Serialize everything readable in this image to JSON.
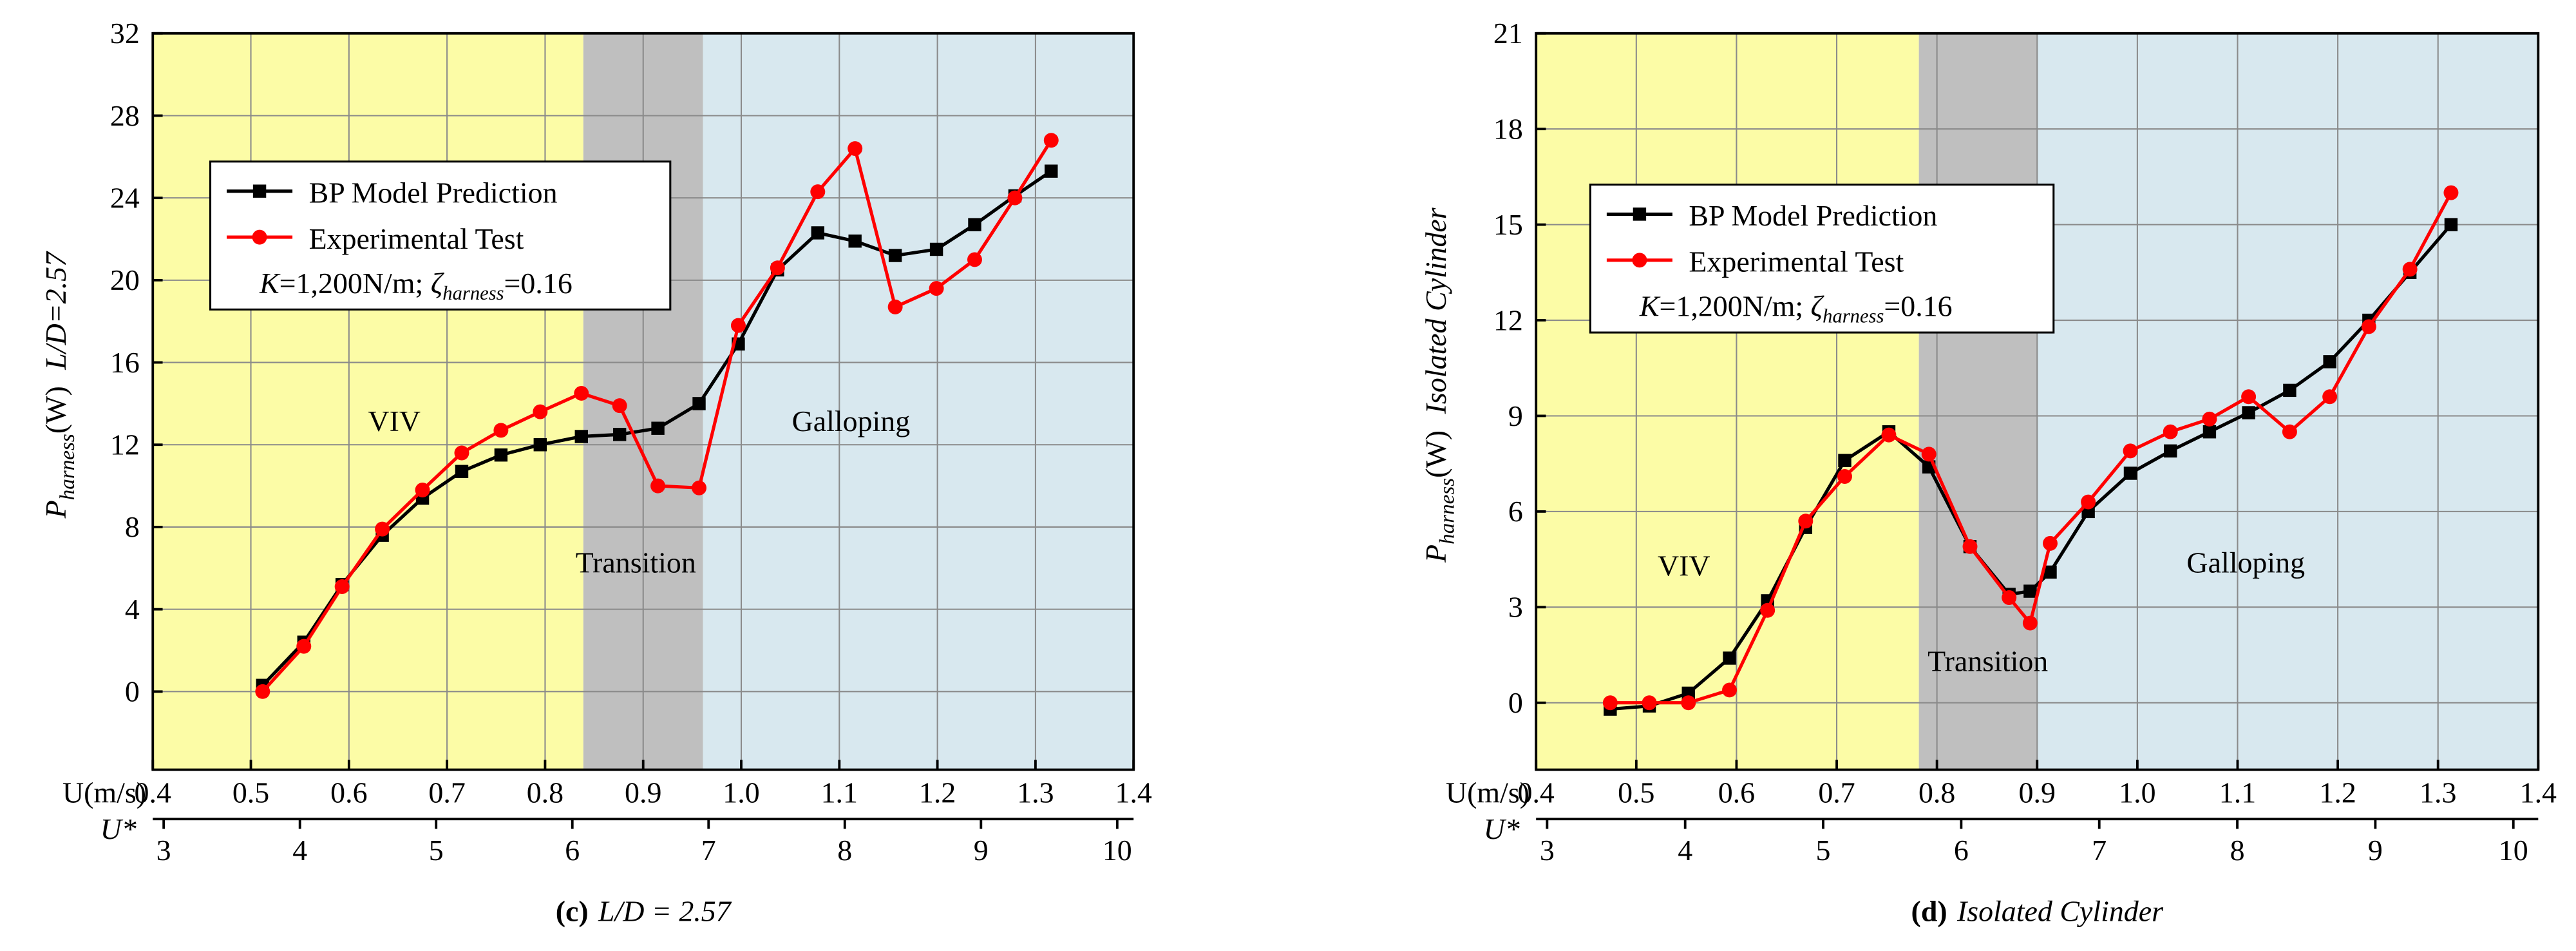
{
  "chart_data": [
    {
      "type": "line",
      "caption_label": "(c)",
      "caption_text": "L/D = 2.57",
      "xlabel": "U(m/s)",
      "x2label": "U*",
      "ylabel": "P",
      "ylabel_sub": "harness",
      "ylabel_unit": "(W)",
      "ylabel_case": "L/D=2.57",
      "annotation": [
        "K",
        "=1,200N/m; ",
        "ζ",
        "harness",
        "=0.16"
      ],
      "xlim": [
        0.4,
        1.4
      ],
      "xticks": [
        0.4,
        0.5,
        0.6,
        0.7,
        0.8,
        0.9,
        {
          "value": 1,
          "label": "1.0"
        },
        1.1,
        1.2,
        1.3,
        1.4
      ],
      "x2lim": [
        2.92,
        10.12
      ],
      "x2ticks": [
        3,
        4,
        5,
        6,
        7,
        8,
        9,
        10
      ],
      "ylim": [
        -3.8,
        32
      ],
      "yticks": [
        0,
        4,
        8,
        12,
        16,
        20,
        24,
        28,
        32
      ],
      "grid": true,
      "regions": [
        {
          "label": "VIV",
          "from": 0.4,
          "to": 0.839,
          "color": "#fcfca6"
        },
        {
          "label": "Transition",
          "from": 0.839,
          "to": 0.961,
          "color": "#bfbfbf"
        },
        {
          "label": "Galloping",
          "from": 0.961,
          "to": 1.4,
          "color": "#d8e8ef"
        }
      ],
      "x": [
        0.512,
        0.554,
        0.593,
        0.634,
        0.675,
        0.715,
        0.755,
        0.795,
        0.837,
        0.876,
        0.915,
        0.957,
        0.997,
        1.037,
        1.078,
        1.116,
        1.157,
        1.199,
        1.238,
        1.279,
        1.316
      ],
      "series": [
        {
          "name": "BP Model Prediction",
          "color": "#000000",
          "marker": "square",
          "values": [
            0.3,
            2.4,
            5.2,
            7.6,
            9.4,
            10.7,
            11.5,
            12.0,
            12.4,
            12.5,
            12.8,
            14.0,
            16.9,
            20.5,
            22.3,
            21.9,
            21.2,
            21.5,
            22.7,
            24.1,
            25.3
          ]
        },
        {
          "name": "Experimental Test",
          "color": "#ff0000",
          "marker": "circle",
          "values": [
            0,
            2.2,
            5.1,
            7.9,
            9.8,
            11.6,
            12.7,
            13.6,
            14.5,
            13.9,
            10.0,
            9.9,
            17.8,
            20.6,
            24.3,
            26.4,
            18.7,
            19.6,
            21.0,
            24.0,
            26.8
          ]
        }
      ]
    },
    {
      "type": "line",
      "caption_label": "(d)",
      "caption_text": "Isolated Cylinder",
      "xlabel": "U(m/s)",
      "x2label": "U*",
      "ylabel": "P",
      "ylabel_sub": "harness",
      "ylabel_unit": "(W)",
      "ylabel_case": "Isolated Cylinder",
      "annotation": [
        "K",
        "=1,200N/m; ",
        "ζ",
        "harness",
        "=0.16"
      ],
      "xlim": [
        0.4,
        1.4
      ],
      "xticks": [
        0.4,
        0.5,
        0.6,
        0.7,
        0.8,
        0.9,
        {
          "value": 1,
          "label": "1.0"
        },
        1.1,
        1.2,
        1.3,
        1.4
      ],
      "x2lim": [
        2.92,
        10.18
      ],
      "x2ticks": [
        3,
        4,
        5,
        6,
        7,
        8,
        9,
        10
      ],
      "ylim": [
        -2.1,
        21
      ],
      "yticks": [
        0,
        3,
        6,
        9,
        12,
        15,
        18,
        21
      ],
      "grid": true,
      "regions": [
        {
          "label": "VIV",
          "from": 0.4,
          "to": 0.782,
          "color": "#fcfca6"
        },
        {
          "label": "Transition",
          "from": 0.782,
          "to": 0.9,
          "color": "#bfbfbf"
        },
        {
          "label": "Galloping",
          "from": 0.9,
          "to": 1.4,
          "color": "#d8e8ef"
        }
      ],
      "x": [
        0.474,
        0.513,
        0.552,
        0.593,
        0.631,
        0.669,
        0.708,
        0.752,
        0.792,
        0.833,
        0.872,
        0.893,
        0.913,
        0.951,
        0.993,
        1.033,
        1.072,
        1.111,
        1.152,
        1.192,
        1.231,
        1.272,
        1.313
      ],
      "series": [
        {
          "name": "BP Model Prediction",
          "color": "#000000",
          "marker": "square",
          "values": [
            -0.2,
            -0.1,
            0.3,
            1.4,
            3.2,
            5.5,
            7.6,
            8.5,
            7.4,
            4.9,
            3.4,
            3.5,
            4.1,
            6.0,
            7.2,
            7.9,
            8.5,
            9.1,
            9.8,
            10.7,
            12.0,
            13.5,
            15.0
          ]
        },
        {
          "name": "Experimental Test",
          "color": "#ff0000",
          "marker": "circle",
          "values": [
            0,
            0,
            0,
            0.4,
            2.9,
            5.7,
            7.1,
            8.4,
            7.8,
            4.9,
            3.3,
            2.5,
            5.0,
            6.3,
            7.9,
            8.5,
            8.9,
            9.6,
            8.5,
            9.6,
            11.8,
            13.6,
            16.0
          ]
        }
      ]
    }
  ]
}
